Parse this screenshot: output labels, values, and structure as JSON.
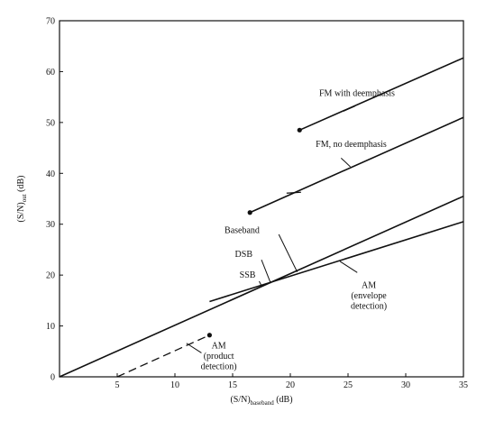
{
  "chart_data": {
    "type": "line",
    "xlabel": "(S/N)",
    "xlabel_sub": "baseband",
    "xlabel_unit": " (dB)",
    "ylabel": "(S/N)",
    "ylabel_sub": "out",
    "ylabel_unit": " (dB)",
    "xlim": [
      0,
      35
    ],
    "ylim": [
      0,
      70
    ],
    "x_ticks": [
      5,
      10,
      15,
      20,
      25,
      30,
      35
    ],
    "x_tick_labels": [
      "5",
      "10",
      "15",
      "20",
      "25",
      "30",
      "35"
    ],
    "y_ticks": [
      0,
      10,
      20,
      30,
      40,
      50,
      60,
      70
    ],
    "y_tick_labels": [
      "0",
      "10",
      "20",
      "30",
      "40",
      "50",
      "60",
      "70"
    ],
    "grid": false,
    "series": [
      {
        "name": "FM with deemphasis",
        "x": [
          20.8,
          35
        ],
        "y": [
          48.5,
          62.7
        ],
        "style": "solid",
        "start_marker": true
      },
      {
        "name": "FM, no deemphasis",
        "x": [
          16.5,
          35
        ],
        "y": [
          32.3,
          51
        ],
        "style": "solid",
        "start_marker": true,
        "tick_at": [
          20.3,
          36.2
        ]
      },
      {
        "name": "Baseband, DSB, SSB",
        "x": [
          0,
          35
        ],
        "y": [
          0,
          35.5
        ],
        "style": "solid"
      },
      {
        "name": "AM (envelope detection)",
        "x": [
          13,
          35
        ],
        "y": [
          14.8,
          30.5
        ],
        "style": "solid"
      },
      {
        "name": "AM (product detection)",
        "x": [
          5,
          13
        ],
        "y": [
          0,
          8.2
        ],
        "style": "dashed",
        "end_marker": true
      }
    ],
    "annotations": [
      {
        "id": "fm-de",
        "lines": [
          "FM with deemphasis"
        ],
        "x": 22.5,
        "y": 55.2,
        "leader": [
          [
            24.6,
            52.2
          ],
          [
            25.6,
            53.2
          ]
        ]
      },
      {
        "id": "fm-no",
        "lines": [
          "FM, no deemphasis"
        ],
        "x": 22.2,
        "y": 45.2,
        "leader": [
          [
            24.4,
            43.0
          ],
          [
            25.2,
            41.3
          ]
        ]
      },
      {
        "id": "baseband",
        "lines": [
          "Baseband"
        ],
        "x": 14.3,
        "y": 28.3,
        "leader": [
          [
            19.0,
            28.0
          ],
          [
            20.6,
            20.6
          ]
        ]
      },
      {
        "id": "dsb",
        "lines": [
          "DSB"
        ],
        "x": 15.2,
        "y": 23.6,
        "leader": [
          [
            17.5,
            23.0
          ],
          [
            18.3,
            18.4
          ]
        ]
      },
      {
        "id": "ssb",
        "lines": [
          "SSB"
        ],
        "x": 15.6,
        "y": 19.5,
        "leader": [
          [
            17.3,
            18.8
          ],
          [
            17.5,
            17.9
          ]
        ]
      },
      {
        "id": "am-env",
        "lines": [
          "AM",
          "(envelope",
          "detection)"
        ],
        "x": 26.8,
        "y": 17.5,
        "leader": [
          [
            25.8,
            20.5
          ],
          [
            24.3,
            22.7
          ]
        ]
      },
      {
        "id": "am-prod",
        "lines": [
          "AM",
          "(product",
          "detection)"
        ],
        "x": 13.8,
        "y": 5.6,
        "leader": [
          [
            12.3,
            4.7
          ],
          [
            11.0,
            6.6
          ]
        ]
      }
    ]
  }
}
